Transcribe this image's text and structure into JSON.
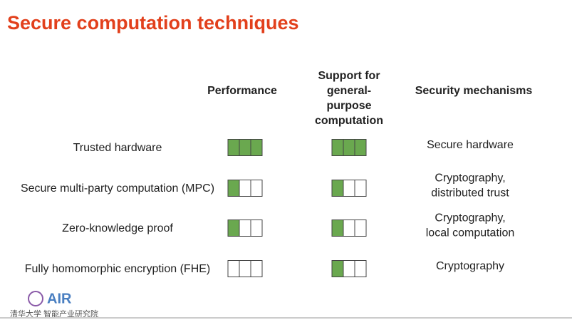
{
  "title": "Secure computation techniques",
  "headers": {
    "technique": null,
    "performance": "Performance",
    "support": [
      "Support for",
      "general-",
      "purpose",
      "computation"
    ],
    "security": "Security mechanisms"
  },
  "boxes": 3,
  "rows": [
    {
      "name": "Trusted hardware",
      "performance": 3,
      "support": 3,
      "security": [
        "Secure hardware"
      ]
    },
    {
      "name": "Secure multi-party computation (MPC)",
      "performance": 1,
      "support": 1,
      "security": [
        "Cryptography,",
        "distributed trust"
      ]
    },
    {
      "name": "Zero-knowledge proof",
      "performance": 1,
      "support": 1,
      "security": [
        "Cryptography,",
        "local computation"
      ]
    },
    {
      "name": "Fully homomorphic encryption (FHE)",
      "performance": 0,
      "support": 1,
      "security": [
        "Cryptography"
      ]
    }
  ],
  "logo": {
    "mark": "AIR",
    "org": "清华大学 智能产业研究院"
  }
}
